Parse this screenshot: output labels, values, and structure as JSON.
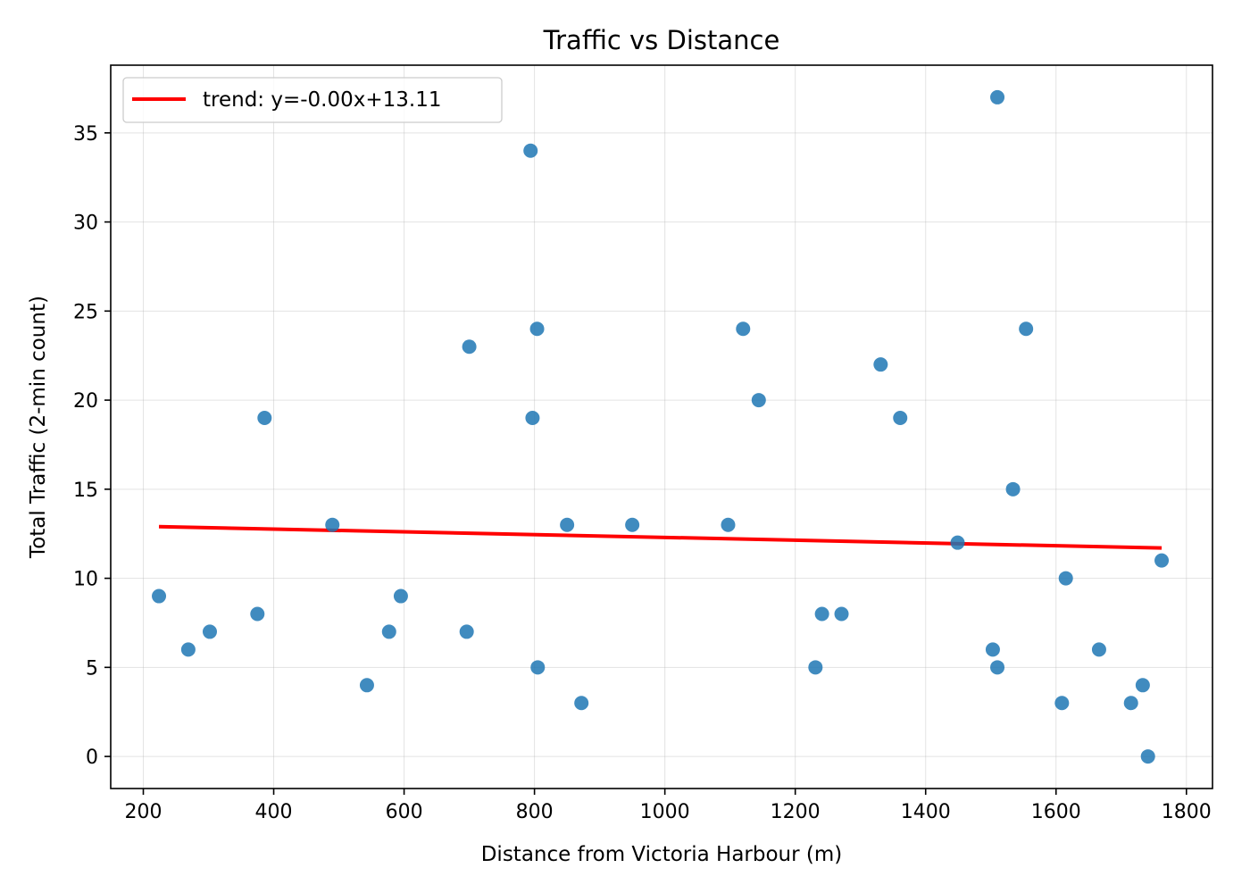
{
  "chart_data": {
    "type": "scatter",
    "title": "Traffic vs Distance",
    "xlabel": "Distance from Victoria Harbour (m)",
    "ylabel": "Total Traffic (2-min count)",
    "xlim": [
      150,
      1840
    ],
    "ylim": [
      -1.8,
      38.8
    ],
    "xticks": [
      200,
      400,
      600,
      800,
      1000,
      1200,
      1400,
      1600,
      1800
    ],
    "yticks": [
      0,
      5,
      10,
      15,
      20,
      25,
      30,
      35
    ],
    "grid": true,
    "legend_position": "top-left",
    "point_color": "#1f77b4",
    "trend_color": "#ff0000",
    "trend": {
      "label": "trend: y=-0.00x+13.11",
      "x": [
        224,
        1762
      ],
      "y": [
        12.9,
        11.7
      ]
    },
    "points": [
      {
        "x": 224,
        "y": 9
      },
      {
        "x": 269,
        "y": 6
      },
      {
        "x": 302,
        "y": 7
      },
      {
        "x": 375,
        "y": 8
      },
      {
        "x": 386,
        "y": 19
      },
      {
        "x": 490,
        "y": 13
      },
      {
        "x": 543,
        "y": 4
      },
      {
        "x": 577,
        "y": 7
      },
      {
        "x": 595,
        "y": 9
      },
      {
        "x": 696,
        "y": 7
      },
      {
        "x": 700,
        "y": 23
      },
      {
        "x": 794,
        "y": 34
      },
      {
        "x": 797,
        "y": 19
      },
      {
        "x": 804,
        "y": 24
      },
      {
        "x": 805,
        "y": 5
      },
      {
        "x": 850,
        "y": 13
      },
      {
        "x": 872,
        "y": 3
      },
      {
        "x": 950,
        "y": 13
      },
      {
        "x": 1097,
        "y": 13
      },
      {
        "x": 1120,
        "y": 24
      },
      {
        "x": 1144,
        "y": 20
      },
      {
        "x": 1231,
        "y": 5
      },
      {
        "x": 1241,
        "y": 8
      },
      {
        "x": 1271,
        "y": 8
      },
      {
        "x": 1331,
        "y": 22
      },
      {
        "x": 1361,
        "y": 19
      },
      {
        "x": 1449,
        "y": 12
      },
      {
        "x": 1503,
        "y": 6
      },
      {
        "x": 1510,
        "y": 5
      },
      {
        "x": 1510,
        "y": 37
      },
      {
        "x": 1534,
        "y": 15
      },
      {
        "x": 1554,
        "y": 24
      },
      {
        "x": 1609,
        "y": 3
      },
      {
        "x": 1615,
        "y": 10
      },
      {
        "x": 1666,
        "y": 6
      },
      {
        "x": 1715,
        "y": 3
      },
      {
        "x": 1733,
        "y": 4
      },
      {
        "x": 1741,
        "y": 0
      },
      {
        "x": 1762,
        "y": 11
      }
    ]
  }
}
